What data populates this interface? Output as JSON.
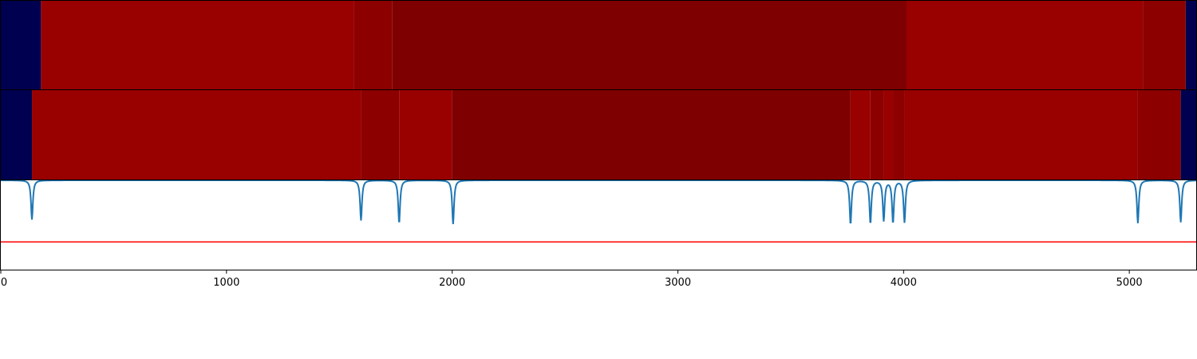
{
  "chart_data": [
    {
      "type": "heatmap",
      "xlim": [
        0,
        5300
      ],
      "colors": {
        "background": "#000050",
        "medium": "#990000",
        "dark": "#7f0000"
      },
      "segments": [
        {
          "start": 0,
          "end": 178,
          "level": "background"
        },
        {
          "start": 178,
          "end": 1566,
          "level": "medium"
        },
        {
          "start": 1566,
          "end": 1735,
          "level": "medium-dark"
        },
        {
          "start": 1735,
          "end": 4013,
          "level": "dark"
        },
        {
          "start": 4013,
          "end": 5060,
          "level": "medium"
        },
        {
          "start": 5060,
          "end": 5250,
          "level": "medium-dark"
        },
        {
          "start": 5250,
          "end": 5300,
          "level": "background"
        }
      ]
    },
    {
      "type": "heatmap",
      "xlim": [
        0,
        5300
      ],
      "colors": {
        "background": "#000050",
        "medium": "#990000",
        "dark": "#7f0000"
      },
      "segments": [
        {
          "start": 0,
          "end": 138,
          "level": "background"
        },
        {
          "start": 138,
          "end": 1596,
          "level": "medium"
        },
        {
          "start": 1596,
          "end": 1765,
          "level": "medium-dark"
        },
        {
          "start": 1765,
          "end": 2000,
          "level": "medium"
        },
        {
          "start": 2000,
          "end": 3765,
          "level": "dark"
        },
        {
          "start": 3765,
          "end": 3853,
          "level": "medium"
        },
        {
          "start": 3853,
          "end": 3912,
          "level": "medium-dark"
        },
        {
          "start": 3912,
          "end": 3953,
          "level": "medium"
        },
        {
          "start": 3953,
          "end": 4004,
          "level": "medium-dark"
        },
        {
          "start": 4004,
          "end": 5038,
          "level": "medium"
        },
        {
          "start": 5038,
          "end": 5228,
          "level": "medium-dark"
        },
        {
          "start": 5228,
          "end": 5300,
          "level": "background"
        }
      ]
    },
    {
      "type": "line",
      "xlim": [
        0,
        5300
      ],
      "ylim": [
        0,
        1
      ],
      "threshold": 0.31,
      "threshold_color": "#ff0000",
      "series_color": "#1f77b4",
      "baseline": 1.0,
      "dips": [
        {
          "x": 138,
          "min": 0.56
        },
        {
          "x": 1596,
          "min": 0.55
        },
        {
          "x": 1765,
          "min": 0.52
        },
        {
          "x": 2004,
          "min": 0.51
        },
        {
          "x": 3765,
          "min": 0.51
        },
        {
          "x": 3853,
          "min": 0.52
        },
        {
          "x": 3912,
          "min": 0.55
        },
        {
          "x": 3953,
          "min": 0.53
        },
        {
          "x": 4004,
          "min": 0.53
        },
        {
          "x": 5038,
          "min": 0.52
        },
        {
          "x": 5228,
          "min": 0.53
        }
      ],
      "xticks": [
        0,
        1000,
        2000,
        3000,
        4000,
        5000
      ],
      "xticklabels": [
        "0",
        "1000",
        "2000",
        "3000",
        "4000",
        "5000"
      ]
    }
  ]
}
